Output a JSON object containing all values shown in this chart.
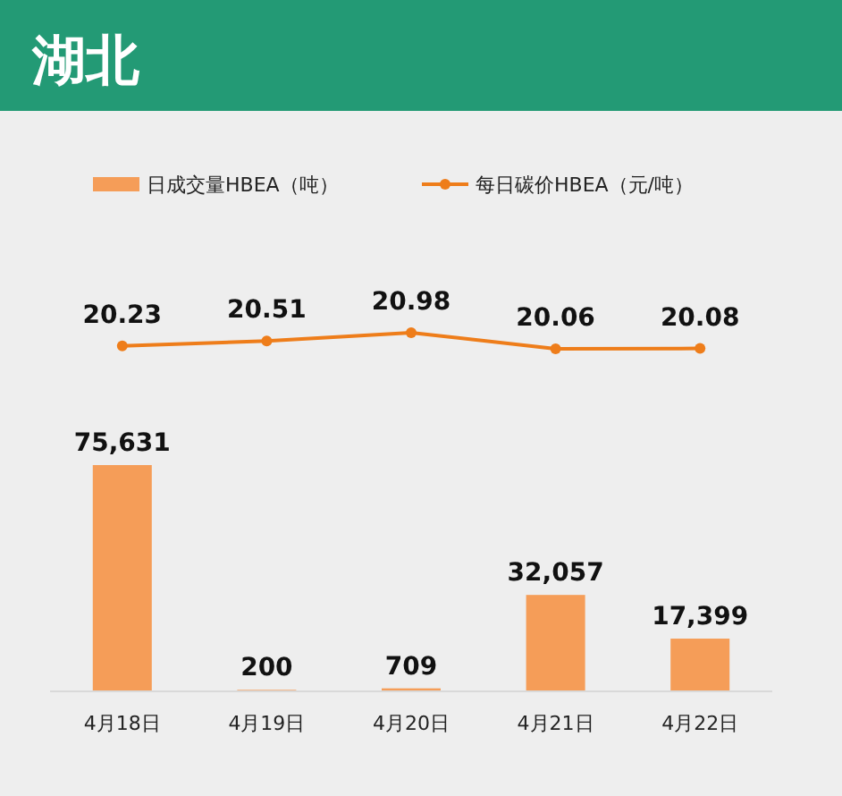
{
  "chart_data": [
    {
      "type": "line",
      "title": "湖北",
      "categories": [
        null,
        null,
        null,
        null,
        null
      ],
      "tick_labels": false,
      "series": [
        {
          "name": "每日碳价HBEA（元/吨）",
          "color": "#ee7d1a",
          "values": [
            20.23,
            20.51,
            20.98,
            20.06,
            20.08
          ]
        }
      ],
      "marker": "circle",
      "data_labels": true,
      "legend": "top"
    },
    {
      "type": "bar",
      "categories": [
        "4月18日",
        "4月19日",
        "4月20日",
        "4月21日",
        "4月22日"
      ],
      "series": [
        {
          "name": "日成交量HBEA（吨）",
          "color": "#f59d58",
          "values": [
            75631,
            200,
            709,
            32057,
            17399
          ],
          "value_labels": [
            "75,631",
            "200",
            "709",
            "32,057",
            "17,399"
          ]
        }
      ],
      "legend": "top"
    }
  ]
}
